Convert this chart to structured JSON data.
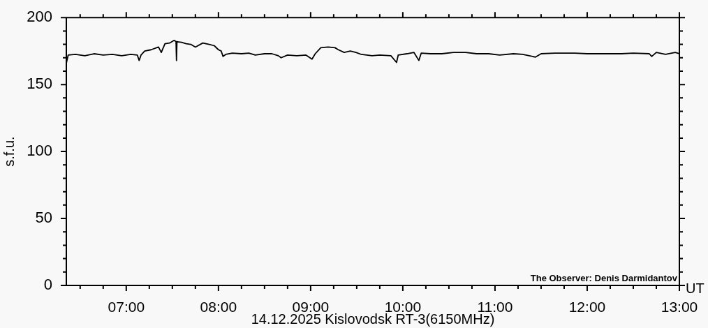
{
  "chart_data": {
    "type": "line",
    "xlabel": "14.12.2025 Kislovodsk RT-3(6150MHz)",
    "ylabel": "s.f.u.",
    "annotations": [
      "The Observer: Denis Darmidantov",
      "UT"
    ],
    "marker": "none",
    "line_style": "solid",
    "xlim": [
      6.35,
      13
    ],
    "ylim": [
      0,
      200
    ],
    "xticks": [
      {
        "value": 6.5,
        "label": null
      },
      {
        "value": 6.75,
        "label": null
      },
      {
        "value": 7,
        "label": "07:00"
      },
      {
        "value": 7.25,
        "label": null
      },
      {
        "value": 7.5,
        "label": null
      },
      {
        "value": 7.75,
        "label": null
      },
      {
        "value": 8,
        "label": "08:00"
      },
      {
        "value": 8.25,
        "label": null
      },
      {
        "value": 8.5,
        "label": null
      },
      {
        "value": 8.75,
        "label": null
      },
      {
        "value": 9,
        "label": "09:00"
      },
      {
        "value": 9.25,
        "label": null
      },
      {
        "value": 9.5,
        "label": null
      },
      {
        "value": 9.75,
        "label": null
      },
      {
        "value": 10,
        "label": "10:00"
      },
      {
        "value": 10.25,
        "label": null
      },
      {
        "value": 10.5,
        "label": null
      },
      {
        "value": 10.75,
        "label": null
      },
      {
        "value": 11,
        "label": "11:00"
      },
      {
        "value": 11.25,
        "label": null
      },
      {
        "value": 11.5,
        "label": null
      },
      {
        "value": 11.75,
        "label": null
      },
      {
        "value": 12,
        "label": "12:00"
      },
      {
        "value": 12.25,
        "label": null
      },
      {
        "value": 12.5,
        "label": null
      },
      {
        "value": 12.75,
        "label": null
      },
      {
        "value": 13,
        "label": "13:00"
      }
    ],
    "yticks": [
      0,
      {
        "value": 10,
        "label": null
      },
      {
        "value": 20,
        "label": null
      },
      {
        "value": 30,
        "label": null
      },
      {
        "value": 40,
        "label": null
      },
      50,
      {
        "value": 60,
        "label": null
      },
      {
        "value": 70,
        "label": null
      },
      {
        "value": 80,
        "label": null
      },
      {
        "value": 90,
        "label": null
      },
      100,
      {
        "value": 110,
        "label": null
      },
      {
        "value": 120,
        "label": null
      },
      {
        "value": 130,
        "label": null
      },
      {
        "value": 140,
        "label": null
      },
      150,
      {
        "value": 160,
        "label": null
      },
      {
        "value": 170,
        "label": null
      },
      {
        "value": 180,
        "label": null
      },
      {
        "value": 190,
        "label": null
      },
      200
    ],
    "series": [
      {
        "color": "#000000",
        "x": [
          6.35,
          6.37,
          6.45,
          6.55,
          6.65,
          6.75,
          6.85,
          6.95,
          7.05,
          7.12,
          7.14,
          7.16,
          7.2,
          7.27,
          7.35,
          7.38,
          7.42,
          7.47,
          7.52,
          7.54,
          7.545,
          7.55,
          7.6,
          7.65,
          7.7,
          7.75,
          7.83,
          7.9,
          7.955,
          8.0,
          8.03,
          8.05,
          8.08,
          8.15,
          8.25,
          8.33,
          8.4,
          8.5,
          8.58,
          8.65,
          8.68,
          8.75,
          8.85,
          8.95,
          9.015,
          9.05,
          9.11,
          9.19,
          9.265,
          9.3,
          9.364,
          9.43,
          9.492,
          9.55,
          9.667,
          9.75,
          9.871,
          9.932,
          9.95,
          10.045,
          10.12,
          10.174,
          10.2,
          10.3,
          10.424,
          10.55,
          10.682,
          10.8,
          10.932,
          11.05,
          11.2,
          11.3,
          11.439,
          11.5,
          11.65,
          11.864,
          12.0,
          12.2,
          12.371,
          12.5,
          12.674,
          12.7,
          12.75,
          12.85,
          12.955,
          13.0
        ],
        "values": [
          166,
          172,
          172.5,
          171.5,
          173,
          172,
          172.5,
          171.5,
          172.5,
          172,
          168,
          172,
          175,
          176,
          178,
          174,
          180.5,
          181,
          183,
          182,
          168,
          182,
          181.5,
          180.5,
          180,
          178,
          181,
          180,
          179,
          176,
          175,
          171,
          172.5,
          173.5,
          173,
          173.5,
          172,
          173,
          173,
          171.5,
          170,
          172,
          171.5,
          172,
          169,
          173,
          177.5,
          178,
          177.5,
          176,
          174,
          175,
          174,
          172.5,
          171.5,
          172,
          171.5,
          166.5,
          172,
          173,
          174,
          168,
          173.5,
          173,
          173,
          174,
          174,
          173,
          173,
          172,
          173,
          172.5,
          170.5,
          173,
          173.5,
          173.5,
          173,
          173,
          173,
          173.5,
          173,
          171,
          174,
          172.5,
          174,
          173
        ]
      }
    ]
  }
}
